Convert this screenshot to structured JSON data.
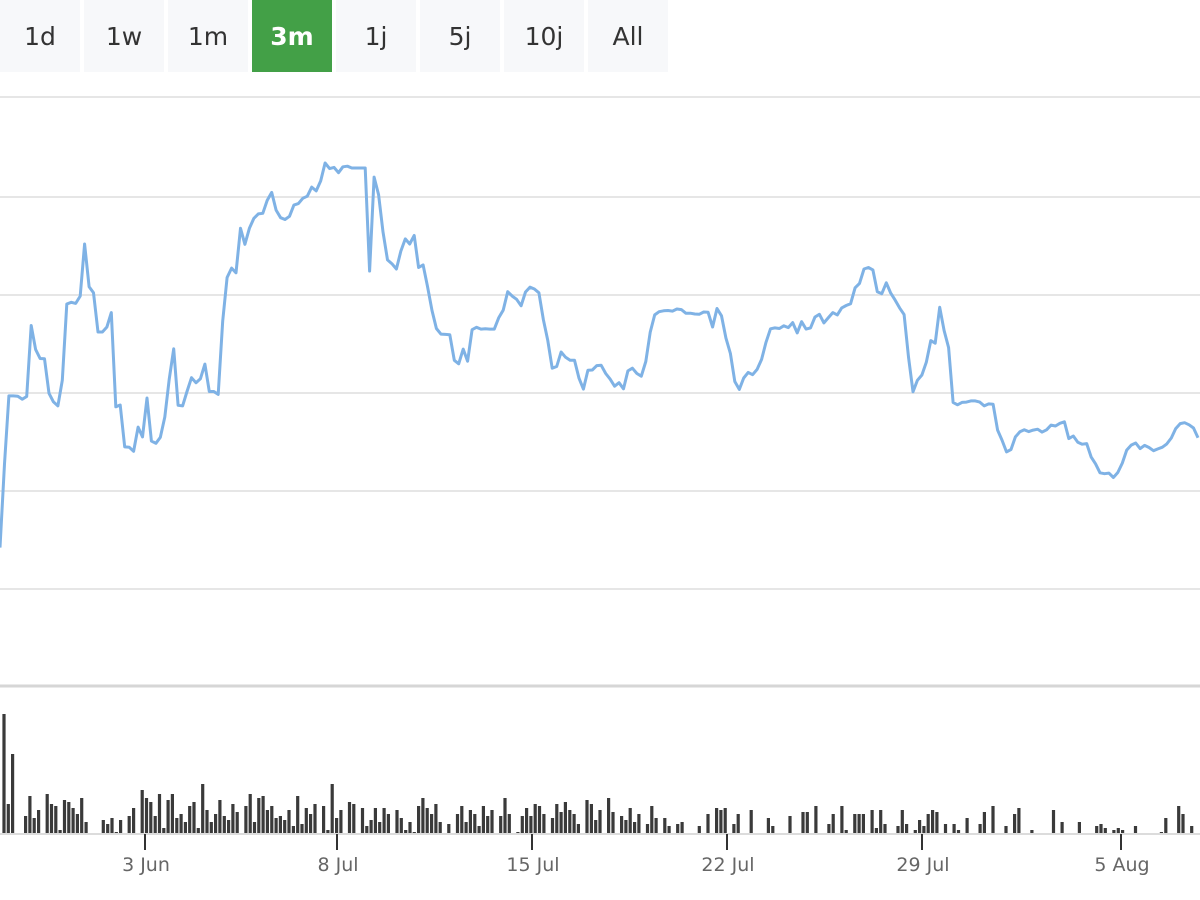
{
  "range_selector": {
    "buttons": [
      {
        "label": "1d",
        "active": false
      },
      {
        "label": "1w",
        "active": false
      },
      {
        "label": "1m",
        "active": false
      },
      {
        "label": "3m",
        "active": true
      },
      {
        "label": "1j",
        "active": false
      },
      {
        "label": "5j",
        "active": false
      },
      {
        "label": "10j",
        "active": false
      },
      {
        "label": "All",
        "active": false
      }
    ]
  },
  "colors": {
    "line": "#7fb2e5",
    "volume": "#3a3a3a",
    "active_button": "#43a047",
    "grid": "#e6e6e6"
  },
  "chart_data": {
    "type": "line",
    "x_ticks": [
      "3 Jun",
      "8 Jul",
      "15 Jul",
      "22 Jul",
      "29 Jul",
      "5 Aug"
    ],
    "series": [
      {
        "values": [
          47.0,
          75.4,
          98.5,
          98.5,
          98.4,
          97.4,
          98.3,
          122.4,
          114.3,
          111.2,
          111.1,
          99.4,
          96.5,
          95.1,
          103.8,
          129.7,
          130.3,
          129.9,
          132.4,
          150.1,
          135.6,
          133.5,
          120.2,
          120.2,
          121.9,
          126.8,
          94.8,
          95.4,
          81.2,
          81.1,
          79.7,
          87.9,
          84.6,
          97.8,
          83.2,
          82.4,
          84.4,
          91.3,
          104.1,
          114.5,
          95.3,
          95.1,
          100.0,
          104.7,
          103.0,
          104.3,
          109.3,
          100.0,
          100.0,
          99.0,
          123.9,
          138.7,
          141.9,
          140.3,
          155.4,
          150.0,
          155.4,
          158.8,
          160.3,
          160.5,
          164.9,
          167.6,
          161.6,
          159.0,
          158.4,
          159.5,
          163.3,
          163.8,
          165.6,
          166.3,
          169.4,
          168.1,
          171.5,
          177.6,
          175.7,
          176.1,
          174.3,
          176.3,
          176.5,
          175.9,
          175.9,
          175.9,
          175.9,
          140.9,
          172.8,
          166.8,
          154.2,
          144.7,
          143.4,
          141.6,
          147.6,
          151.8,
          150.1,
          153.0,
          142.1,
          143.0,
          135.7,
          127.5,
          121.4,
          119.5,
          119.4,
          119.3,
          110.6,
          109.4,
          114.4,
          110.3,
          121.0,
          121.8,
          121.2,
          121.3,
          121.2,
          121.2,
          125.1,
          127.6,
          133.9,
          132.4,
          131.3,
          129.1,
          133.8,
          135.4,
          134.8,
          133.5,
          124.5,
          117.3,
          107.9,
          108.5,
          113.4,
          111.6,
          110.6,
          110.6,
          104.5,
          100.8,
          107.2,
          107.3,
          108.8,
          108.9,
          106.1,
          104.2,
          101.8,
          103.0,
          100.9,
          107.0,
          107.9,
          106.1,
          105.2,
          110.2,
          120.1,
          126.0,
          127.1,
          127.4,
          127.5,
          127.3,
          128.0,
          127.8,
          126.6,
          126.6,
          126.3,
          126.2,
          127.0,
          126.9,
          121.9,
          128.2,
          125.7,
          118.2,
          112.9,
          103.4,
          100.7,
          104.6,
          106.5,
          105.7,
          107.5,
          110.9,
          116.7,
          121.3,
          121.6,
          121.4,
          122.3,
          121.7,
          123.4,
          119.9,
          123.7,
          121.2,
          121.6,
          125.3,
          126.2,
          123.3,
          125.1,
          126.8,
          126.0,
          128.4,
          129.2,
          129.8,
          135.2,
          136.7,
          141.6,
          142.1,
          141.3,
          133.9,
          133.2,
          136.9,
          133.4,
          131.0,
          128.4,
          126.1,
          111.7,
          99.9,
          103.8,
          105.6,
          109.9,
          117.3,
          116.4,
          128.6,
          120.7,
          114.9,
          96.3,
          95.5,
          96.3,
          96.4,
          96.8,
          96.8,
          96.4,
          95.1,
          95.8,
          95.7,
          86.9,
          83.5,
          79.5,
          80.3,
          84.6,
          86.3,
          87.0,
          86.4,
          86.9,
          87.2,
          86.2,
          87.0,
          88.6,
          88.3,
          89.2,
          89.7,
          84.0,
          84.9,
          82.8,
          82.1,
          82.3,
          77.8,
          75.4,
          72.4,
          72.1,
          72.3,
          70.8,
          72.5,
          75.7,
          80.1,
          81.8,
          82.5,
          80.6,
          81.7,
          81.0,
          79.9,
          80.5,
          81.1,
          82.2,
          84.2,
          87.4,
          89.1,
          89.4,
          88.7,
          87.6,
          84.3
        ]
      },
      {
        "values": [
          60,
          15,
          40,
          0,
          0,
          9,
          19,
          8,
          12,
          0,
          20,
          15,
          14,
          2,
          17,
          16,
          13,
          10,
          18,
          6,
          0,
          0,
          0,
          7,
          5,
          8,
          1,
          7,
          0,
          9,
          13,
          0,
          22,
          18,
          16,
          9,
          20,
          3,
          17,
          20,
          8,
          10,
          6,
          14,
          16,
          3,
          25,
          12,
          6,
          10,
          17,
          9,
          7,
          15,
          11,
          0,
          14,
          20,
          6,
          18,
          19,
          12,
          14,
          8,
          9,
          7,
          12,
          4,
          19,
          5,
          13,
          10,
          15,
          0,
          14,
          2,
          25,
          8,
          12,
          0,
          16,
          15,
          0,
          13,
          4,
          7,
          13,
          6,
          13,
          10,
          0,
          12,
          8,
          2,
          6,
          1,
          14,
          18,
          13,
          10,
          15,
          6,
          0,
          5,
          0,
          10,
          14,
          6,
          12,
          10,
          4,
          14,
          9,
          12,
          0,
          9,
          18,
          10,
          0,
          1,
          9,
          13,
          9,
          15,
          14,
          10,
          0,
          8,
          15,
          11,
          16,
          12,
          10,
          5,
          0,
          17,
          15,
          7,
          12,
          0,
          18,
          11,
          0,
          9,
          7,
          13,
          6,
          10,
          0,
          5,
          14,
          8,
          0,
          8,
          4,
          0,
          5,
          6,
          0,
          0,
          0,
          4,
          0,
          10,
          0,
          13,
          12,
          13,
          0,
          5,
          10,
          0,
          0,
          12,
          0,
          0,
          0,
          8,
          4,
          0,
          0,
          0,
          9,
          0,
          0,
          11,
          11,
          0,
          14,
          0,
          0,
          5,
          10,
          0,
          14,
          2,
          0,
          10,
          10,
          10,
          0,
          12,
          3,
          12,
          5,
          0,
          0,
          4,
          12,
          5,
          0,
          2,
          7,
          4,
          10,
          12,
          11,
          0,
          5,
          0,
          5,
          2,
          0,
          8,
          0,
          0,
          5,
          11,
          0,
          14,
          0,
          0,
          4,
          0,
          10,
          13,
          0,
          0,
          2,
          0,
          0,
          0,
          0,
          12,
          0,
          6,
          0,
          0,
          0,
          6,
          0,
          0,
          0,
          4,
          5,
          3,
          0,
          2,
          3,
          2,
          0,
          0,
          4,
          0,
          0,
          0,
          0,
          0,
          1,
          8,
          0,
          0,
          14,
          10,
          0,
          4,
          0
        ]
      }
    ],
    "grid": true,
    "legend": "none"
  }
}
